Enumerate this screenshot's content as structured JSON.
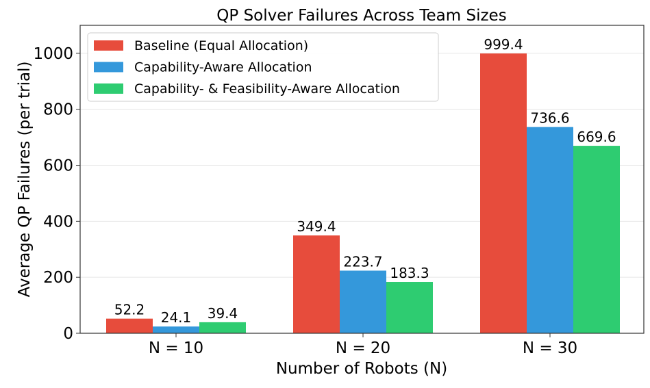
{
  "chart_data": {
    "type": "bar",
    "title": "QP Solver Failures Across Team Sizes",
    "xlabel": "Number of Robots (N)",
    "ylabel": "Average QP Failures (per trial)",
    "categories": [
      "N = 10",
      "N = 20",
      "N = 30"
    ],
    "series": [
      {
        "name": "Baseline (Equal Allocation)",
        "color": "#e74c3c",
        "values": [
          52.2,
          349.4,
          999.4
        ]
      },
      {
        "name": "Capability-Aware Allocation",
        "color": "#3498db",
        "values": [
          24.1,
          223.7,
          736.6
        ]
      },
      {
        "name": "Capability- & Feasibility-Aware Allocation",
        "color": "#2ecc71",
        "values": [
          39.4,
          183.3,
          669.6
        ]
      }
    ],
    "yticks": [
      0,
      200,
      400,
      600,
      800,
      1000
    ],
    "ylim": [
      0,
      1100
    ],
    "grid": true,
    "legend_position": "upper left",
    "data_labels": true
  }
}
